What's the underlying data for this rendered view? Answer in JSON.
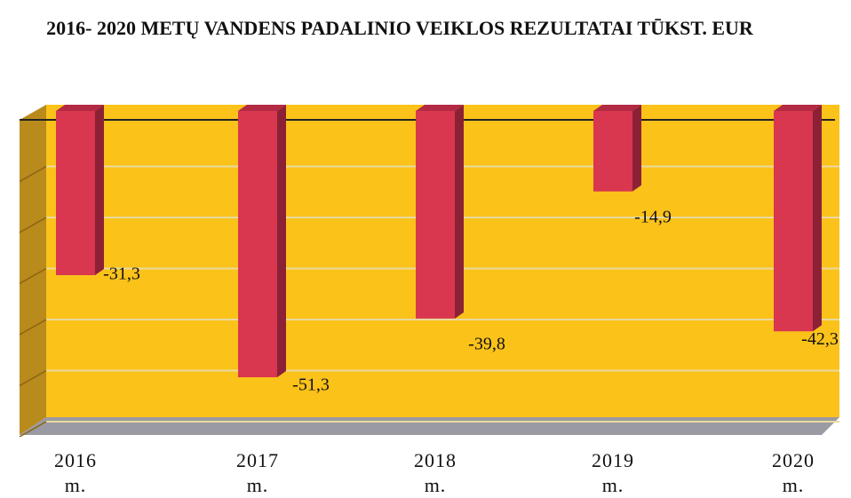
{
  "chart_data": {
    "type": "bar",
    "title": "2016- 2020 METŲ VANDENS PADALINIO  VEIKLOS REZULTATAI  TŪKST. EUR",
    "categories": [
      "2016 m.",
      "2017 m.",
      "2018 m.",
      "2019 m.",
      "2020 m."
    ],
    "values": [
      -31.3,
      -51.3,
      -39.8,
      -14.9,
      -42.3
    ],
    "value_labels": [
      "-31,3",
      "-51,3",
      "-39,8",
      "-14,9",
      "-42,3"
    ],
    "color": "#d8374f",
    "ylim": [
      -60,
      0
    ],
    "yticks": [
      0,
      -10,
      -20,
      -30,
      -40,
      -50,
      -60
    ],
    "grid": true
  }
}
